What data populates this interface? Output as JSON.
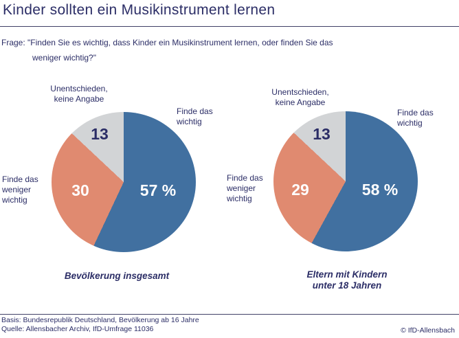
{
  "title": "Kinder sollten ein Musikinstrument lernen",
  "question": {
    "line1": "Frage: \"Finden Sie es wichtig, dass Kinder ein Musikinstrument lernen, oder finden Sie das",
    "line2": "weniger wichtig?\""
  },
  "colors": {
    "navy_text": "#2B2D66",
    "slice_blue": "#4170A0",
    "slice_salmon": "#E08A70",
    "slice_gray": "#D2D4D6",
    "value_on_dark": "#FFFFFF",
    "divider": "#3F3F66"
  },
  "labels": {
    "undecided": [
      "Unentschieden,",
      "keine Angabe"
    ],
    "important": [
      "Finde das",
      "wichtig"
    ],
    "less_important": [
      "Finde das",
      "weniger",
      "wichtig"
    ]
  },
  "chart_data": [
    {
      "type": "pie",
      "title": "Bevölkerung insgesamt",
      "title_lines": [
        "Bevölkerung insgesamt"
      ],
      "start_angle_deg": 0,
      "direction": "clockwise",
      "slices": [
        {
          "label": "Finde das wichtig",
          "value": 57,
          "display": "57 %",
          "color": "#4170A0"
        },
        {
          "label": "Finde das weniger wichtig",
          "value": 30,
          "display": "30",
          "color": "#E08A70"
        },
        {
          "label": "Unentschieden, keine Angabe",
          "value": 13,
          "display": "13",
          "color": "#D2D4D6"
        }
      ]
    },
    {
      "type": "pie",
      "title": "Eltern mit Kindern unter 18 Jahren",
      "title_lines": [
        "Eltern mit Kindern",
        "unter 18 Jahren"
      ],
      "start_angle_deg": 0,
      "direction": "clockwise",
      "slices": [
        {
          "label": "Finde das wichtig",
          "value": 58,
          "display": "58 %",
          "color": "#4170A0"
        },
        {
          "label": "Finde das weniger wichtig",
          "value": 29,
          "display": "29",
          "color": "#E08A70"
        },
        {
          "label": "Unentschieden, keine Angabe",
          "value": 13,
          "display": "13",
          "color": "#D2D4D6"
        }
      ]
    }
  ],
  "footer": {
    "basis": "Basis: Bundesrepublik Deutschland, Bevölkerung ab 16 Jahre",
    "quelle": "Quelle: Allensbacher Archiv, IfD-Umfrage 11036",
    "copyright": "© IfD-Allensbach"
  }
}
